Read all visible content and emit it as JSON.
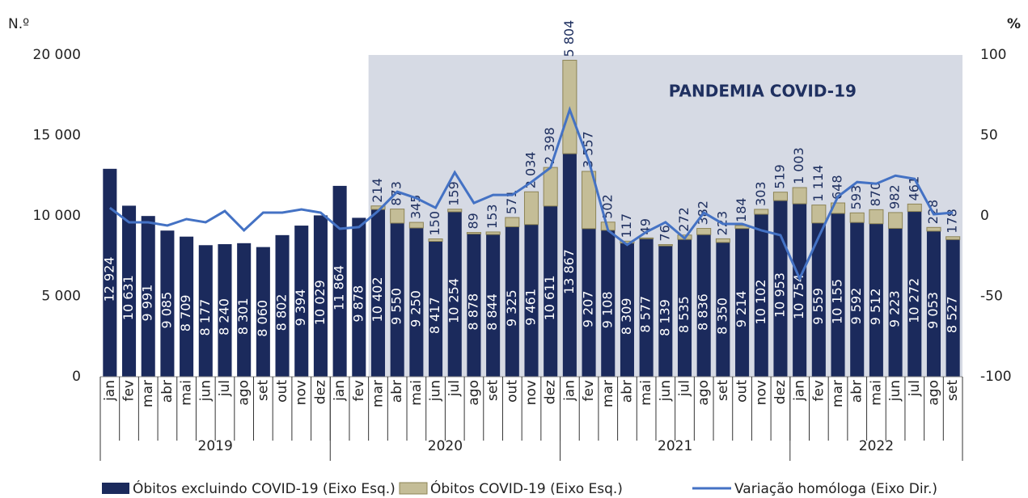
{
  "chart_data": {
    "type": "bar",
    "y_label": "N.º",
    "y2_label": "%",
    "ylim": [
      0,
      20000
    ],
    "yticks": [
      0,
      {
        "value": 5000,
        "label": "5 000"
      },
      {
        "value": 10000,
        "label": "10 000"
      },
      {
        "value": 15000,
        "label": "15 000"
      },
      {
        "value": 20000,
        "label": "20 000"
      }
    ],
    "y2lim": [
      -100,
      100
    ],
    "y2ticks": [
      -100,
      -50,
      0,
      50,
      100
    ],
    "annotation": {
      "text": "PANDEMIA COVID-19",
      "from_group": "2020",
      "from_category": "mar",
      "color": "#d6dae4"
    },
    "groups": [
      {
        "name": "2019",
        "categories": [
          "jan",
          "fev",
          "mar",
          "abr",
          "mai",
          "jun",
          "jul",
          "ago",
          "set",
          "out",
          "nov",
          "dez"
        ]
      },
      {
        "name": "2020",
        "categories": [
          "jan",
          "fev",
          "mar",
          "abr",
          "mai",
          "jun",
          "jul",
          "ago",
          "set",
          "out",
          "nov",
          "dez"
        ]
      },
      {
        "name": "2021",
        "categories": [
          "jan",
          "fev",
          "mar",
          "abr",
          "mai",
          "jun",
          "jul",
          "ago",
          "set",
          "out",
          "nov",
          "dez"
        ]
      },
      {
        "name": "2022",
        "categories": [
          "jan",
          "fev",
          "mar",
          "abr",
          "mai",
          "jun",
          "jul",
          "ago",
          "set"
        ]
      }
    ],
    "series": [
      {
        "name": "Óbitos excluindo COVID-19 (Eixo Esq.)",
        "color": "#1b2a5c",
        "type": "bar",
        "values": [
          12924,
          10631,
          9991,
          9085,
          8709,
          8177,
          8240,
          8301,
          8060,
          8802,
          9394,
          10029,
          11864,
          9878,
          10402,
          9550,
          9250,
          8417,
          10254,
          8878,
          8844,
          9325,
          9461,
          10611,
          13867,
          9207,
          9108,
          8309,
          8577,
          8139,
          8535,
          8836,
          8350,
          9214,
          10102,
          10953,
          10754,
          9559,
          10155,
          9592,
          9512,
          9223,
          10272,
          9053,
          8527
        ],
        "value_labels": [
          "12 924",
          "10 631",
          "9 991",
          "9 085",
          "8 709",
          "8 177",
          "8 240",
          "8 301",
          "8 060",
          "8 802",
          "9 394",
          "10 029",
          "11 864",
          "9 878",
          "10 402",
          "9 550",
          "9 250",
          "8 417",
          "10 254",
          "8 878",
          "8 844",
          "9 325",
          "9 461",
          "10 611",
          "13 867",
          "9 207",
          "9 108",
          "8 309",
          "8 577",
          "8 139",
          "8 535",
          "8 836",
          "8 350",
          "9 214",
          "10 102",
          "10 953",
          "10 754",
          "9 559",
          "10 155",
          "9 592",
          "9 512",
          "9 223",
          "10 272",
          "9 053",
          "8 527"
        ]
      },
      {
        "name": "Óbitos COVID-19 (Eixo Esq.)",
        "color": "#c4bd97",
        "type": "bar",
        "values": [
          null,
          null,
          null,
          null,
          null,
          null,
          null,
          null,
          null,
          null,
          null,
          null,
          null,
          null,
          214,
          873,
          345,
          150,
          159,
          89,
          153,
          571,
          2034,
          2398,
          5804,
          3557,
          502,
          117,
          49,
          76,
          272,
          382,
          223,
          184,
          303,
          519,
          1003,
          1114,
          648,
          593,
          870,
          982,
          461,
          228,
          178
        ],
        "value_labels": [
          null,
          null,
          null,
          null,
          null,
          null,
          null,
          null,
          null,
          null,
          null,
          null,
          null,
          null,
          "214",
          "873",
          "345",
          "150",
          "159",
          "89",
          "153",
          "571",
          "2 034",
          "2 398",
          "5 804",
          "3 557",
          "502",
          "117",
          "49",
          "76",
          "272",
          "382",
          "223",
          "184",
          "303",
          "519",
          "1 003",
          "1 114",
          "648",
          "593",
          "870",
          "982",
          "461",
          "228",
          "178"
        ]
      },
      {
        "name": "Variação homóloga (Eixo Dir.)",
        "color": "#4472c4",
        "type": "line",
        "axis": "y2",
        "values": [
          5,
          -4,
          -4,
          -6,
          -2,
          -4,
          3,
          -9,
          2,
          2,
          4,
          2,
          -8,
          -7,
          3,
          15,
          11,
          5,
          27,
          8,
          13,
          13,
          21,
          30,
          66,
          34,
          -9,
          -18,
          -10,
          -4,
          -14,
          2,
          -5,
          -5,
          -9,
          -12,
          -39,
          -13,
          12,
          21,
          20,
          25,
          23,
          1,
          2
        ]
      }
    ]
  }
}
